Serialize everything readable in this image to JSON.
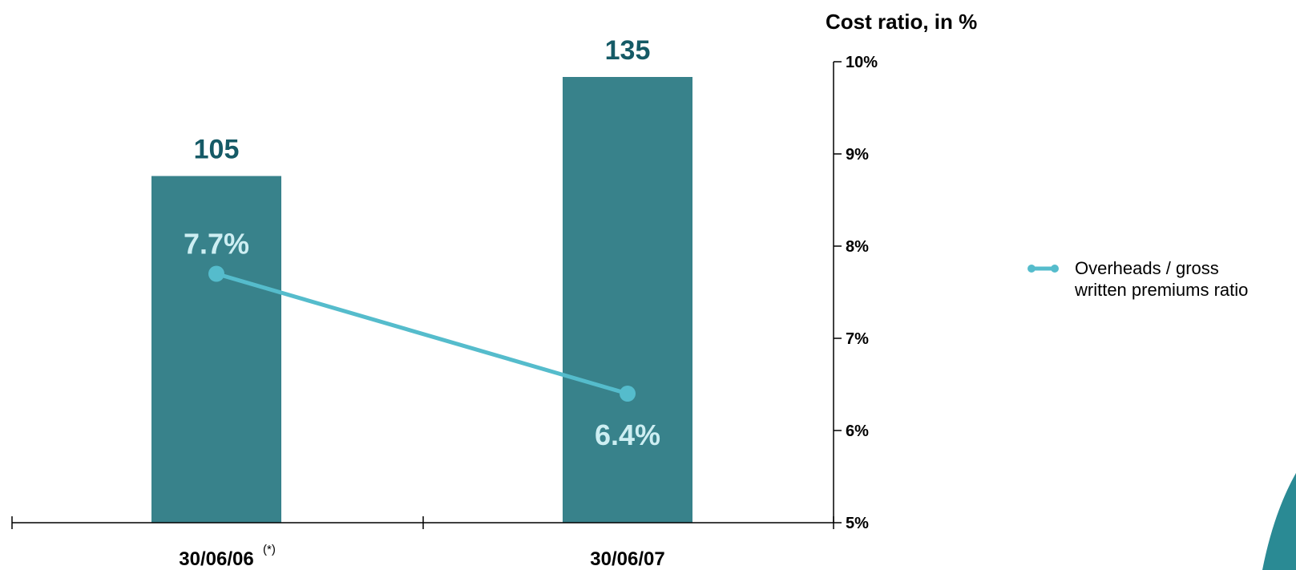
{
  "chart_data": {
    "type": "bar",
    "categories": [
      "30/06/06",
      "30/06/07"
    ],
    "category_notes": [
      "(*)",
      ""
    ],
    "bar_values": [
      105,
      135
    ],
    "bar_value_labels": [
      "105",
      "135"
    ],
    "bar_color": "#38828b",
    "series": [
      {
        "name": "Overheads / gross written premiums ratio",
        "legend_lines": [
          "Overheads / gross",
          "written premiums ratio"
        ],
        "type": "line",
        "axis": "secondary",
        "values": [
          7.7,
          6.4
        ],
        "labels": [
          "7.7%",
          "6.4%"
        ],
        "color": "#55bccc"
      }
    ],
    "secondary_axis": {
      "title": "Cost ratio, in %",
      "ylim": [
        5,
        10
      ],
      "ticks": [
        5,
        6,
        7,
        8,
        9,
        10
      ],
      "tick_labels": [
        "5%",
        "6%",
        "7%",
        "8%",
        "9%",
        "10%"
      ]
    },
    "legend_position": "right"
  }
}
